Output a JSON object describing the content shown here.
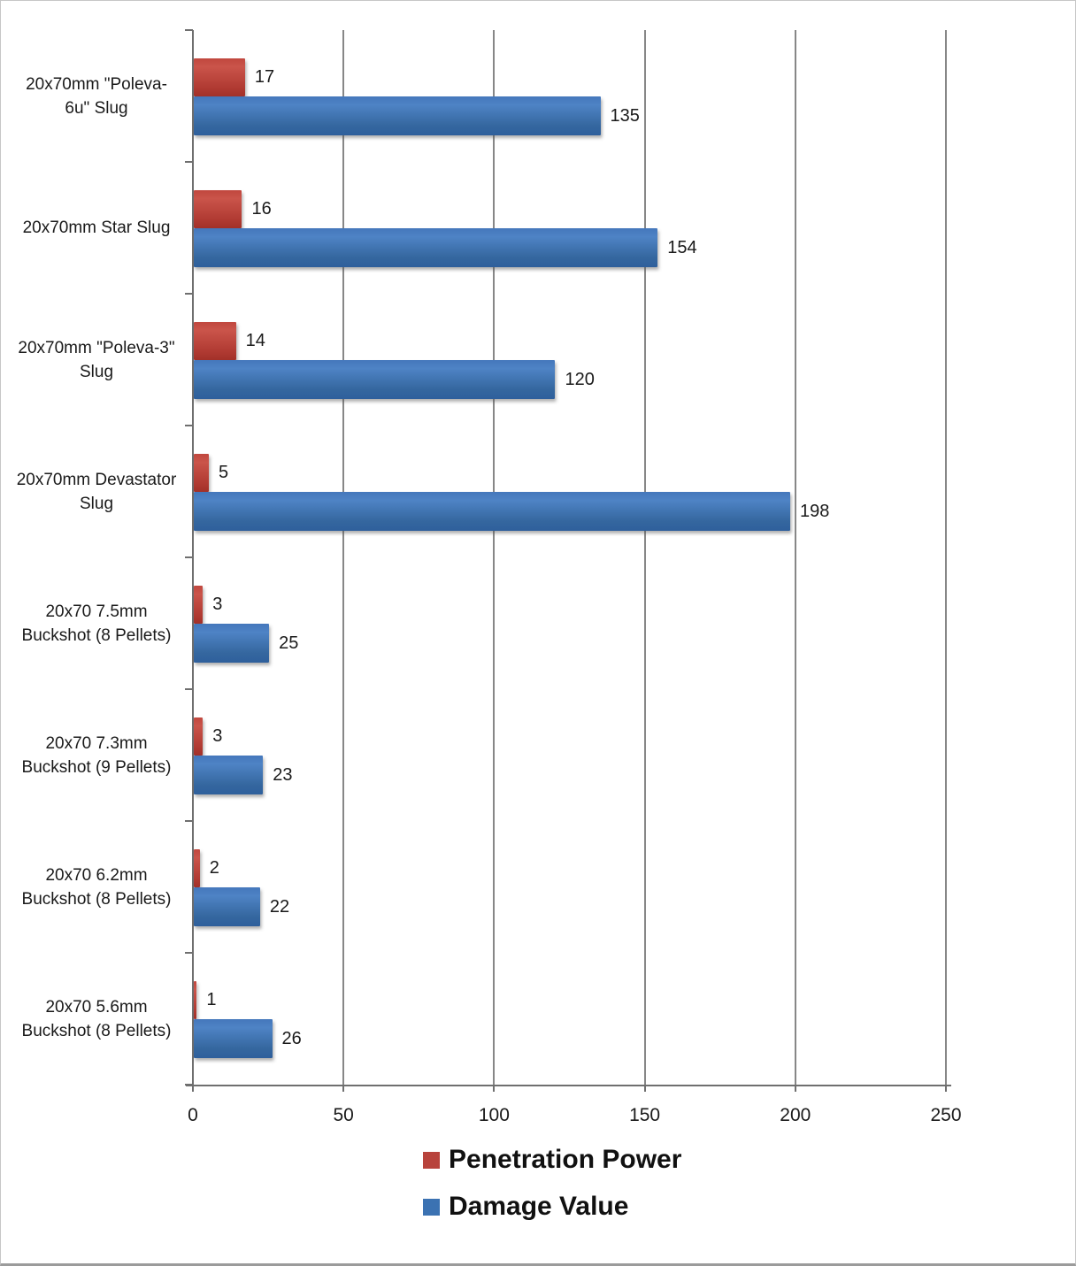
{
  "chart_data": {
    "type": "bar",
    "orientation": "horizontal",
    "title": "",
    "categories": [
      "20x70mm \"Poleva-6u\" Slug",
      "20x70mm Star Slug",
      "20x70mm \"Poleva-3\" Slug",
      "20x70mm Devastator Slug",
      "20x70 7.5mm Buckshot (8 Pellets)",
      "20x70 7.3mm Buckshot (9 Pellets)",
      "20x70 6.2mm Buckshot (8 Pellets)",
      "20x70 5.6mm Buckshot (8 Pellets)"
    ],
    "category_lines": [
      [
        "20x70mm \"Poleva-",
        "6u\" Slug"
      ],
      [
        "20x70mm Star Slug"
      ],
      [
        "20x70mm \"Poleva-3\"",
        "Slug"
      ],
      [
        "20x70mm Devastator",
        "Slug"
      ],
      [
        "20x70 7.5mm",
        "Buckshot (8 Pellets)"
      ],
      [
        "20x70 7.3mm",
        "Buckshot (9 Pellets)"
      ],
      [
        "20x70 6.2mm",
        "Buckshot (8 Pellets)"
      ],
      [
        "20x70 5.6mm",
        "Buckshot (8 Pellets)"
      ]
    ],
    "series": [
      {
        "name": "Penetration Power",
        "color": "#b8433c",
        "values": [
          17,
          16,
          14,
          5,
          3,
          3,
          2,
          1
        ]
      },
      {
        "name": "Damage Value",
        "color": "#3b72b2",
        "values": [
          135,
          154,
          120,
          198,
          25,
          23,
          22,
          26
        ]
      }
    ],
    "xlim": [
      0,
      250
    ],
    "x_ticks": [
      "0",
      "50",
      "100",
      "150",
      "200",
      "250"
    ],
    "grid": true,
    "legend_position": "bottom",
    "value_labels": true
  },
  "colors": {
    "pen_bar": "#b8433c",
    "dmg_bar": "#3b72b2",
    "gridline": "#878787",
    "axis": "#6f6f6f",
    "text": "#1a1a1a"
  }
}
